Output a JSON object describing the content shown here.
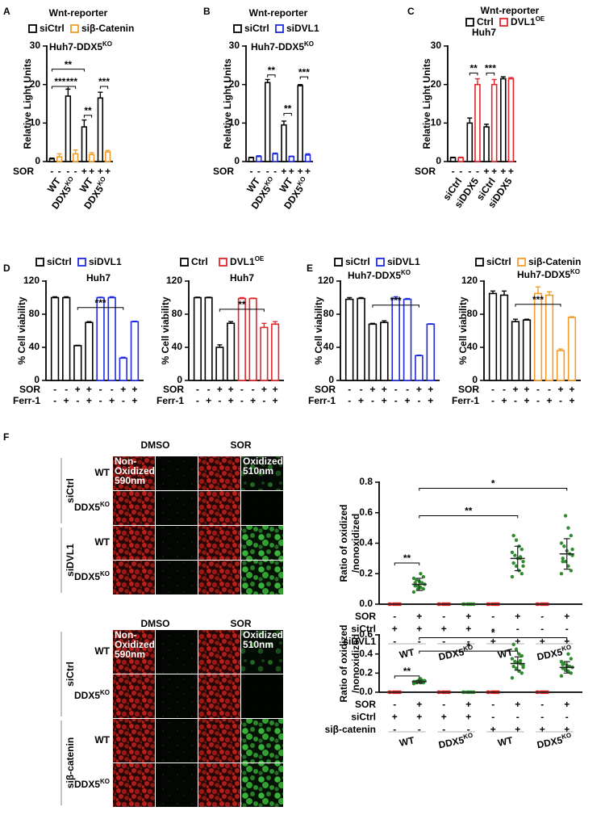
{
  "panel_letters": [
    "A",
    "B",
    "C",
    "D",
    "E",
    "F"
  ],
  "chart_data": [
    {
      "type": "bar",
      "title": "Wnt-reporter",
      "subtitle": {
        "text": "Huh7-DDX5",
        "sup": "KO"
      },
      "y_label": "Relative Light Units",
      "ylim": [
        0,
        30
      ],
      "yticks": [
        0,
        10,
        20,
        30
      ],
      "group_labels": [
        "WT",
        {
          "text": "DDX5",
          "sup": "KO"
        },
        "WT",
        {
          "text": "DDX5",
          "sup": "KO"
        }
      ],
      "series": [
        {
          "name": "siCtrl",
          "color": "#000000",
          "values": [
            0.7,
            17,
            9,
            16.5
          ],
          "errors": [
            0.2,
            1.8,
            1.8,
            1.5
          ]
        },
        {
          "name": "siβ-Catenin",
          "color": "#f39c2a",
          "values": [
            1.2,
            2,
            1.8,
            2.5
          ],
          "errors": [
            0.8,
            1,
            0.5,
            0.4
          ]
        }
      ],
      "treatments": [
        {
          "name": "SOR",
          "values": [
            "-",
            "-",
            "-",
            "-",
            "+",
            "+",
            "+",
            "+"
          ]
        }
      ],
      "annotations": [
        "**",
        "***",
        "***",
        "**",
        "***"
      ]
    },
    {
      "type": "bar",
      "title": "Wnt-reporter",
      "subtitle": {
        "text": "Huh7-DDX5",
        "sup": "KO"
      },
      "y_label": "Relative Light Units",
      "ylim": [
        0,
        30
      ],
      "yticks": [
        0,
        10,
        20,
        30
      ],
      "group_labels": [
        "WT",
        {
          "text": "DDX5",
          "sup": "KO"
        },
        "WT",
        {
          "text": "DDX5",
          "sup": "KO"
        }
      ],
      "series": [
        {
          "name": "siCtrl",
          "color": "#000000",
          "values": [
            1,
            20.5,
            9.5,
            19.7
          ],
          "errors": [
            0.1,
            0.8,
            1,
            0.3
          ]
        },
        {
          "name": "siDVL1",
          "color": "#1f2be0",
          "values": [
            1.3,
            2,
            1.3,
            1.7
          ],
          "errors": [
            0.2,
            0.2,
            0.1,
            0.3
          ]
        }
      ],
      "treatments": [
        {
          "name": "SOR",
          "values": [
            "-",
            "-",
            "-",
            "-",
            "+",
            "+",
            "+",
            "+"
          ]
        }
      ],
      "annotations": [
        "**",
        "**",
        "***"
      ]
    },
    {
      "type": "bar",
      "title": "Wnt-reporter",
      "subtitle": "Huh7",
      "y_label": "Relative Light Units",
      "ylim": [
        0,
        30
      ],
      "yticks": [
        0,
        10,
        20,
        30
      ],
      "group_labels": [
        "siCtrl",
        "siDDX5",
        "siCtrl",
        "siDDX5"
      ],
      "series": [
        {
          "name": "Ctrl",
          "color": "#000000",
          "values": [
            1,
            10,
            9,
            21.5
          ],
          "errors": [
            0.1,
            1.3,
            0.7,
            0.5
          ]
        },
        {
          "name": {
            "text": "DVL1",
            "sup": "OE"
          },
          "color": "#e3242b",
          "values": [
            1,
            20,
            20,
            21.5
          ],
          "errors": [
            0.1,
            1.5,
            1.3,
            0.3
          ]
        }
      ],
      "treatments": [
        {
          "name": "SOR",
          "values": [
            "-",
            "-",
            "-",
            "-",
            "+",
            "+",
            "+",
            "+"
          ]
        }
      ],
      "annotations": [
        "**",
        "***"
      ]
    },
    {
      "type": "bar",
      "subtitle": "Huh7",
      "y_label": "% Cell viability",
      "ylim": [
        0,
        120
      ],
      "yticks": [
        0,
        40,
        80,
        120
      ],
      "series": [
        {
          "name": "siCtrl",
          "color": "#000000",
          "values": [
            100,
            100,
            42,
            70
          ],
          "errors": [
            1,
            1,
            0.5,
            1
          ]
        },
        {
          "name": "siDVL1",
          "color": "#1f2be0",
          "values": [
            100,
            100,
            27,
            71
          ],
          "errors": [
            0.5,
            1,
            1,
            0.5
          ]
        }
      ],
      "treatments": [
        {
          "name": "SOR",
          "values": [
            "-",
            "-",
            "+",
            "+",
            "-",
            "-",
            "+",
            "+"
          ]
        },
        {
          "name": "Ferr-1",
          "values": [
            "-",
            "+",
            "-",
            "+",
            "-",
            "+",
            "-",
            "+"
          ]
        }
      ],
      "annotations": [
        "***"
      ]
    },
    {
      "type": "bar",
      "subtitle": "Huh7",
      "y_label": "% Cell viability",
      "ylim": [
        0,
        120
      ],
      "yticks": [
        0,
        40,
        80,
        120
      ],
      "series": [
        {
          "name": "Ctrl",
          "color": "#000000",
          "values": [
            100,
            100,
            40,
            69
          ],
          "errors": [
            0.5,
            0.5,
            3,
            2
          ]
        },
        {
          "name": {
            "text": "DVL1",
            "sup": "OE"
          },
          "color": "#e3242b",
          "values": [
            99,
            99,
            64,
            68
          ],
          "errors": [
            1,
            0.5,
            5,
            3
          ]
        }
      ],
      "treatments": [
        {
          "name": "SOR",
          "values": [
            "-",
            "-",
            "+",
            "+",
            "-",
            "-",
            "+",
            "+"
          ]
        },
        {
          "name": "Ferr-1",
          "values": [
            "-",
            "+",
            "-",
            "+",
            "-",
            "+",
            "-",
            "+"
          ]
        }
      ],
      "annotations": [
        "**"
      ]
    },
    {
      "type": "bar",
      "subtitle": {
        "text": "Huh7-DDX5",
        "sup": "KO"
      },
      "y_label": "% Cell viability",
      "ylim": [
        0,
        120
      ],
      "yticks": [
        0,
        40,
        80,
        120
      ],
      "series": [
        {
          "name": "siCtrl",
          "color": "#000000",
          "values": [
            98,
            99,
            68,
            70
          ],
          "errors": [
            2,
            1,
            1,
            2
          ]
        },
        {
          "name": "siDVL1",
          "color": "#1f2be0",
          "values": [
            99,
            98,
            30,
            68
          ],
          "errors": [
            2,
            1,
            0.5,
            0.5
          ]
        }
      ],
      "treatments": [
        {
          "name": "SOR",
          "values": [
            "-",
            "-",
            "+",
            "+",
            "-",
            "-",
            "+",
            "+"
          ]
        },
        {
          "name": "Ferr-1",
          "values": [
            "-",
            "+",
            "-",
            "+",
            "-",
            "+",
            "-",
            "+"
          ]
        }
      ],
      "annotations": [
        "***"
      ]
    },
    {
      "type": "bar",
      "subtitle": {
        "text": "Huh7-DDX5",
        "sup": "KO"
      },
      "y_label": "% Cell viability",
      "ylim": [
        0,
        120
      ],
      "yticks": [
        0,
        40,
        80,
        120
      ],
      "series": [
        {
          "name": "siCtrl",
          "color": "#000000",
          "values": [
            105,
            103,
            71,
            73
          ],
          "errors": [
            3,
            5,
            3,
            1
          ]
        },
        {
          "name": "siβ-Catenin",
          "color": "#f39c2a",
          "values": [
            105,
            103,
            36,
            76
          ],
          "errors": [
            8,
            4,
            2,
            1
          ]
        }
      ],
      "treatments": [
        {
          "name": "SOR",
          "values": [
            "-",
            "-",
            "+",
            "+",
            "-",
            "-",
            "+",
            "+"
          ]
        },
        {
          "name": "Ferr-1",
          "values": [
            "-",
            "+",
            "-",
            "+",
            "-",
            "+",
            "-",
            "+"
          ]
        }
      ],
      "annotations": [
        "***"
      ]
    },
    {
      "type": "dot",
      "y_label": [
        "Ratio of oxidized",
        "/nonoxidized"
      ],
      "ylim": [
        0,
        0.8
      ],
      "yticks": [
        {
          "value": 0,
          "label": "0.0"
        },
        {
          "value": 0.2,
          "label": "0.2"
        },
        {
          "value": 0.4,
          "label": "0.4"
        },
        {
          "value": 0.6,
          "label": "0.6"
        },
        {
          "value": 0.8,
          "label": "0.8"
        }
      ],
      "colors": [
        "#e31a1c",
        "#2e8b2e",
        "#e31a1c",
        "#2e8b2e",
        "#e31a1c",
        "#2e8b2e",
        "#e31a1c",
        "#2e8b2e"
      ],
      "values": [
        0,
        0.13,
        0,
        0,
        0,
        0.3,
        0,
        0.33
      ],
      "errors": [
        0,
        0.04,
        0,
        0,
        0,
        0.08,
        0,
        0.1
      ],
      "points": [
        [
          0,
          0,
          0,
          0,
          0,
          0,
          0,
          0
        ],
        [
          0.08,
          0.1,
          0.11,
          0.12,
          0.12,
          0.13,
          0.14,
          0.15,
          0.16,
          0.17,
          0.18,
          0.2,
          0.1,
          0.14
        ],
        [
          0,
          0,
          0,
          0,
          0,
          0,
          0,
          0
        ],
        [
          0,
          0,
          0,
          0,
          0,
          0,
          0,
          0
        ],
        [
          0,
          0,
          0,
          0,
          0,
          0,
          0,
          0
        ],
        [
          0.18,
          0.2,
          0.22,
          0.25,
          0.27,
          0.28,
          0.3,
          0.3,
          0.32,
          0.34,
          0.36,
          0.38,
          0.42,
          0.45,
          0.25,
          0.31
        ],
        [
          0,
          0,
          0,
          0,
          0,
          0,
          0,
          0
        ],
        [
          0.2,
          0.22,
          0.25,
          0.28,
          0.3,
          0.32,
          0.33,
          0.35,
          0.38,
          0.4,
          0.45,
          0.5,
          0.58,
          0.28,
          0.36
        ]
      ],
      "treatments": [
        {
          "name": "SOR",
          "values": [
            "-",
            "+",
            "-",
            "+",
            "-",
            "+",
            "-",
            "+"
          ]
        },
        {
          "name": "siCtrl",
          "values": [
            "+",
            "+",
            "+",
            "+",
            "-",
            "-",
            "-",
            "-"
          ]
        },
        {
          "name": "siDVL1",
          "values": [
            "-",
            "-",
            "-",
            "-",
            "+",
            "+",
            "+",
            "+"
          ]
        }
      ],
      "group_labels": [
        "WT",
        {
          "text": "DDX5",
          "sup": "KO"
        },
        "WT",
        {
          "text": "DDX5",
          "sup": "KO"
        }
      ],
      "annotations": [
        "**",
        "**",
        "*"
      ]
    },
    {
      "type": "dot",
      "y_label": [
        "Ratio of oxidized",
        "/nonoxidized"
      ],
      "ylim": [
        0,
        0.6
      ],
      "yticks": [
        {
          "value": 0,
          "label": "0.0"
        },
        {
          "value": 0.2,
          "label": "0.2"
        },
        {
          "value": 0.4,
          "label": "0.4"
        },
        {
          "value": 0.6,
          "label": "0.6"
        }
      ],
      "colors": [
        "#e31a1c",
        "#2e8b2e",
        "#e31a1c",
        "#2e8b2e",
        "#e31a1c",
        "#2e8b2e",
        "#e31a1c",
        "#2e8b2e"
      ],
      "values": [
        0,
        0.11,
        0,
        0,
        0,
        0.3,
        0,
        0.26
      ],
      "errors": [
        0,
        0.015,
        0,
        0,
        0,
        0.07,
        0,
        0.06
      ],
      "points": [
        [
          0,
          0,
          0,
          0,
          0,
          0,
          0,
          0
        ],
        [
          0.09,
          0.1,
          0.1,
          0.11,
          0.11,
          0.12,
          0.12,
          0.13,
          0.1,
          0.11,
          0.12,
          0.14
        ],
        [
          0,
          0,
          0,
          0,
          0,
          0,
          0,
          0
        ],
        [
          0,
          0,
          0,
          0,
          0,
          0,
          0,
          0
        ],
        [
          0,
          0,
          0,
          0,
          0,
          0,
          0,
          0
        ],
        [
          0.15,
          0.2,
          0.22,
          0.25,
          0.27,
          0.28,
          0.3,
          0.31,
          0.32,
          0.35,
          0.38,
          0.4,
          0.45,
          0.5,
          0.26,
          0.33
        ],
        [
          0,
          0,
          0,
          0,
          0,
          0,
          0,
          0
        ],
        [
          0.17,
          0.2,
          0.22,
          0.24,
          0.25,
          0.26,
          0.27,
          0.28,
          0.3,
          0.32,
          0.35,
          0.4,
          0.23,
          0.29
        ]
      ],
      "treatments": [
        {
          "name": "SOR",
          "values": [
            "-",
            "+",
            "-",
            "+",
            "-",
            "+",
            "-",
            "+"
          ]
        },
        {
          "name": "siCtrl",
          "values": [
            "+",
            "+",
            "+",
            "+",
            "-",
            "-",
            "-",
            "-"
          ]
        },
        {
          "name": "siβ-catenin",
          "values": [
            "-",
            "-",
            "-",
            "-",
            "+",
            "+",
            "+",
            "+"
          ]
        }
      ],
      "group_labels": [
        "WT",
        {
          "text": "DDX5",
          "sup": "KO"
        },
        "WT",
        {
          "text": "DDX5",
          "sup": "KO"
        }
      ],
      "annotations": [
        "**",
        "*",
        "*"
      ]
    }
  ],
  "images": [
    {
      "columns": [
        "DMSO",
        "SOR"
      ],
      "overlays": [
        [
          "Non-",
          "Oxidized",
          "590nm"
        ],
        [
          "Oxidized",
          "510nm"
        ]
      ],
      "groups": [
        {
          "name": "siCtrl",
          "rows": [
            "WT",
            {
              "text": "DDX5",
              "sup": "KO"
            }
          ]
        },
        {
          "name": "siDVL1",
          "rows": [
            "WT",
            {
              "text": "DDX5",
              "sup": "KO"
            }
          ]
        }
      ]
    },
    {
      "columns": [
        "DMSO",
        "SOR"
      ],
      "overlays": [
        [
          "Non-",
          "Oxidized",
          "590nm"
        ],
        [
          "Oxidized",
          "510nm"
        ]
      ],
      "groups": [
        {
          "name": "siCtrl",
          "rows": [
            "WT",
            {
              "text": "DDX5",
              "sup": "KO"
            }
          ]
        },
        {
          "name": "siβ-catenin",
          "rows": [
            "WT",
            {
              "text": "DDX5",
              "sup": "KO"
            }
          ]
        }
      ]
    }
  ]
}
